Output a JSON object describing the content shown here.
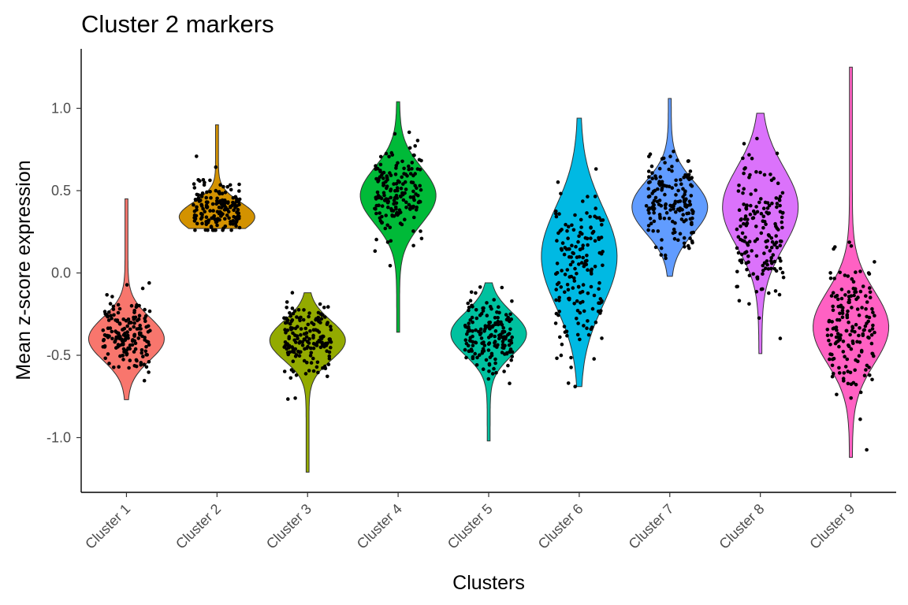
{
  "chart_data": {
    "type": "violin",
    "title": "Cluster  2  markers",
    "xlabel": "Clusters",
    "ylabel": "Mean z-score expression",
    "ylim": [
      -1.3,
      1.35
    ],
    "yticks": [
      1.0,
      0.5,
      0.0,
      -0.5,
      -1.0
    ],
    "ytick_labels": [
      "1.0",
      "0.5",
      "0.0",
      "-0.5",
      "-1.0"
    ],
    "grid": false,
    "legend": "none",
    "categories": [
      "Cluster 1",
      "Cluster 2",
      "Cluster 3",
      "Cluster 4",
      "Cluster 5",
      "Cluster 6",
      "Cluster 7",
      "Cluster 8",
      "Cluster 9"
    ],
    "series": [
      {
        "category": "Cluster 1",
        "color": "#F8766D",
        "min": -0.77,
        "max": 0.45,
        "median": -0.37,
        "mode": -0.4,
        "spread": 0.13,
        "point_range": [
          -0.78,
          0.05
        ]
      },
      {
        "category": "Cluster 2",
        "color": "#D39200",
        "min": 0.27,
        "max": 0.9,
        "median": 0.4,
        "mode": 0.34,
        "spread": 0.09,
        "point_range": [
          0.26,
          0.9
        ]
      },
      {
        "category": "Cluster 3",
        "color": "#93AA00",
        "min": -1.21,
        "max": -0.12,
        "median": -0.4,
        "mode": -0.41,
        "spread": 0.12,
        "point_range": [
          -1.21,
          -0.12
        ]
      },
      {
        "category": "Cluster 4",
        "color": "#00BA38",
        "min": -0.36,
        "max": 1.04,
        "median": 0.48,
        "mode": 0.47,
        "spread": 0.17,
        "point_range": [
          -0.36,
          1.04
        ]
      },
      {
        "category": "Cluster 5",
        "color": "#00C19F",
        "min": -1.02,
        "max": -0.06,
        "median": -0.4,
        "mode": -0.37,
        "spread": 0.13,
        "point_range": [
          -1.02,
          -0.06
        ]
      },
      {
        "category": "Cluster 6",
        "color": "#00B9E3",
        "min": -0.69,
        "max": 0.94,
        "median": 0.0,
        "mode": 0.1,
        "spread": 0.3,
        "point_range": [
          -0.69,
          0.94
        ]
      },
      {
        "category": "Cluster 7",
        "color": "#619CFF",
        "min": -0.02,
        "max": 1.06,
        "median": 0.43,
        "mode": 0.4,
        "spread": 0.16,
        "point_range": [
          0.05,
          1.06
        ]
      },
      {
        "category": "Cluster 8",
        "color": "#DB72FB",
        "min": -0.49,
        "max": 0.97,
        "median": 0.25,
        "mode": 0.4,
        "spread": 0.24,
        "point_range": [
          -0.49,
          0.97
        ]
      },
      {
        "category": "Cluster 9",
        "color": "#FF61C3",
        "min": -1.12,
        "max": 1.25,
        "median": -0.33,
        "mode": -0.33,
        "spread": 0.22,
        "point_range": [
          -1.12,
          1.25
        ]
      }
    ]
  }
}
